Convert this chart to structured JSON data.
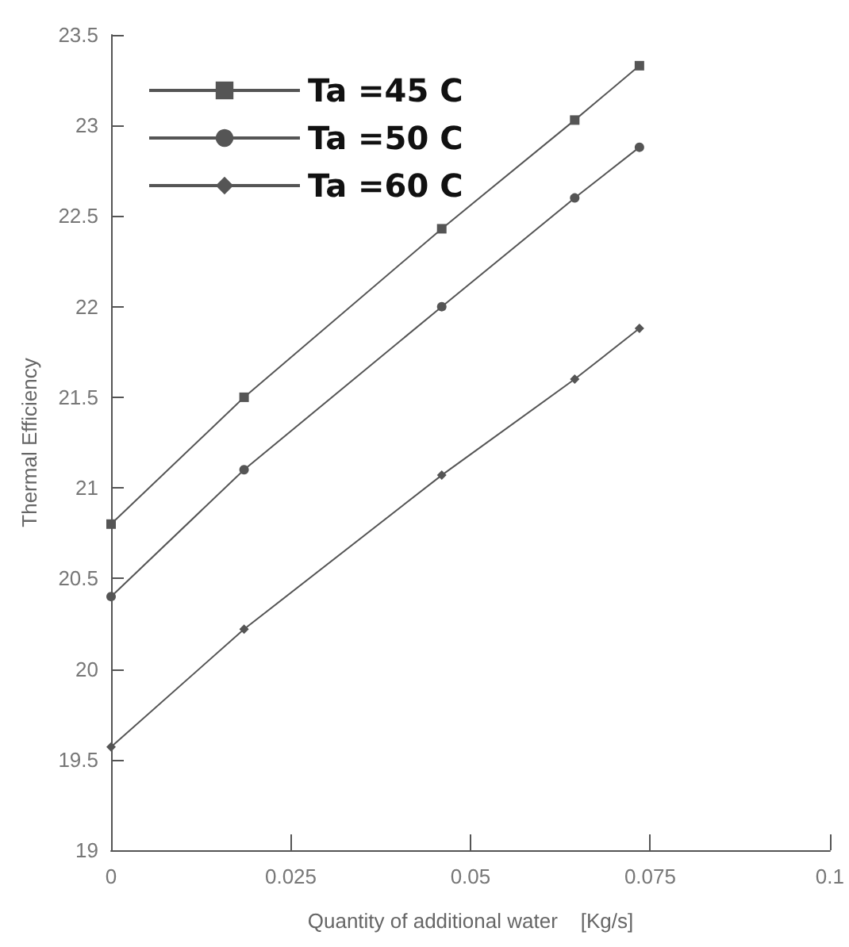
{
  "chart_data": {
    "type": "line",
    "xlabel": "Quantity of additional water    [Kg/s]",
    "ylabel": "Thermal Efficiency",
    "x": [
      0,
      0.0185,
      0.046,
      0.0645,
      0.0735
    ],
    "series": [
      {
        "name": "Ta =45 C",
        "color": "#555555",
        "marker": "square",
        "values": [
          20.8,
          21.5,
          22.43,
          23.03,
          23.33
        ]
      },
      {
        "name": "Ta =50 C",
        "color": "#555555",
        "marker": "circle",
        "values": [
          20.4,
          21.1,
          22.0,
          22.6,
          22.88
        ]
      },
      {
        "name": "Ta =60 C",
        "color": "#555555",
        "marker": "diamond",
        "values": [
          19.57,
          20.22,
          21.07,
          21.6,
          21.88
        ]
      }
    ],
    "xlim": [
      0,
      0.1
    ],
    "xticks": [
      0,
      0.025,
      0.05,
      0.075,
      0.1
    ],
    "ylim": [
      19,
      23.5
    ],
    "yticks": [
      19,
      19.5,
      20,
      20.5,
      21,
      21.5,
      22,
      22.5,
      23,
      23.5
    ],
    "grid": false,
    "legend": "top left"
  }
}
